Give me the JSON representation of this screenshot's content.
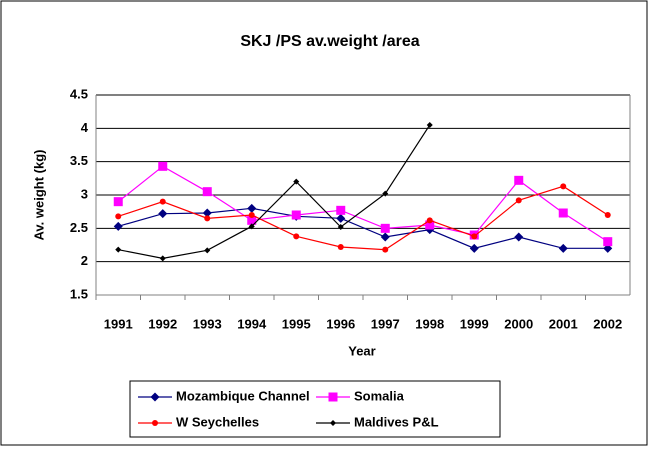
{
  "chart_data": {
    "type": "line",
    "title": "SKJ /PS av.weight /area",
    "x_label": "Year",
    "y_label": "Av. weight (kg)",
    "categories": [
      "1991",
      "1992",
      "1993",
      "1994",
      "1995",
      "1996",
      "1997",
      "1998",
      "1999",
      "2000",
      "2001",
      "2002"
    ],
    "series": [
      {
        "name": "Mozambique Channel",
        "color": "#000080",
        "marker": "diamond",
        "values": [
          2.53,
          2.72,
          2.73,
          2.8,
          2.68,
          2.65,
          2.37,
          2.48,
          2.2,
          2.37,
          2.2,
          2.2
        ]
      },
      {
        "name": "Somalia",
        "color": "#ff00ff",
        "marker": "square",
        "values": [
          2.9,
          3.43,
          3.05,
          2.62,
          2.7,
          2.77,
          2.5,
          2.55,
          2.4,
          3.22,
          2.73,
          2.3
        ]
      },
      {
        "name": "W Seychelles",
        "color": "#ff0000",
        "marker": "circle",
        "values": [
          2.68,
          2.9,
          2.65,
          2.7,
          2.38,
          2.22,
          2.18,
          2.62,
          2.38,
          2.92,
          3.13,
          2.7
        ]
      },
      {
        "name": "Maldives P&L",
        "color": "#000000",
        "marker": "small-diamond",
        "values": [
          2.18,
          2.05,
          2.17,
          2.53,
          3.2,
          2.52,
          3.02,
          4.05,
          null,
          null,
          null,
          null
        ]
      }
    ],
    "ylim": [
      1.5,
      4.5
    ],
    "yticks": [
      {
        "value": 1.5,
        "label": "1.5"
      },
      2,
      2.5,
      3,
      3.5,
      4,
      4.5
    ],
    "grid": true
  }
}
